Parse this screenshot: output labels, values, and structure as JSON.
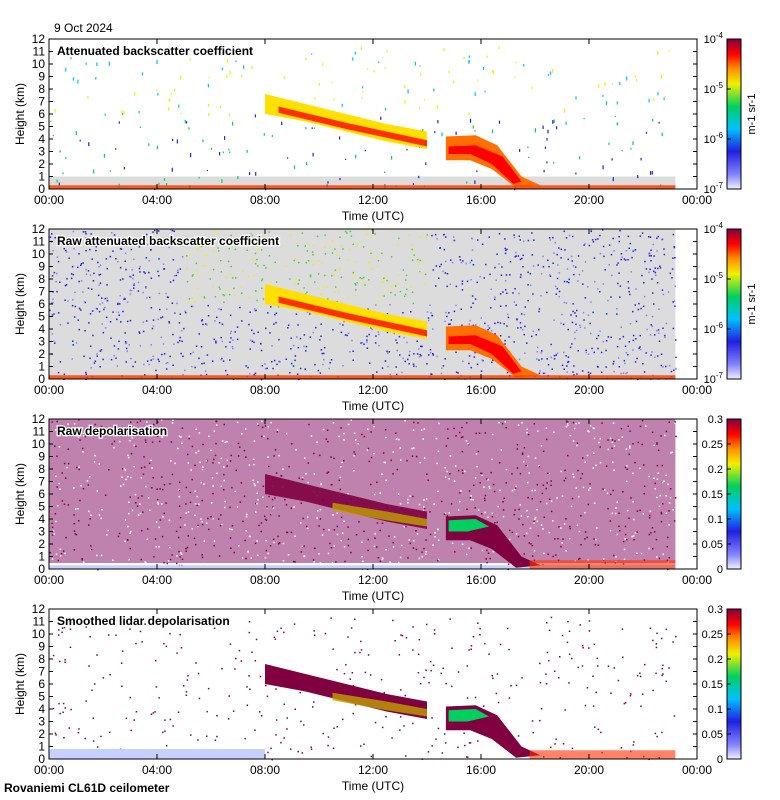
{
  "date_label": "9 Oct 2024",
  "footer_label": "Rovaniemi CL61D ceilometer",
  "colors": {
    "clear_sky": "#dcdcdc",
    "background": "#ffffff",
    "colormap": [
      "#f0f0ff",
      "#8080ff",
      "#2020e0",
      "#00c0ff",
      "#00d060",
      "#f0f000",
      "#ff9000",
      "#ff0000",
      "#800040"
    ]
  },
  "chart_data": [
    {
      "type": "heatmap",
      "title": "Attenuated backscatter coefficient",
      "xlabel": "Time (UTC)",
      "ylabel": "Height (km)",
      "xticks": [
        "00:00",
        "04:00",
        "08:00",
        "12:00",
        "16:00",
        "20:00",
        "00:00"
      ],
      "yticks": [
        "0",
        "1",
        "2",
        "3",
        "4",
        "5",
        "6",
        "7",
        "8",
        "9",
        "10",
        "11",
        "12"
      ],
      "xlim_hours": [
        0,
        24
      ],
      "ylim_km": [
        0,
        12
      ],
      "colorbar": {
        "scale": "log",
        "ticks": [
          "10-7",
          "10-6",
          "10-5",
          "10-4"
        ],
        "label": "m-1 sr-1"
      },
      "features": [
        {
          "name": "mid-level cloud layer",
          "start_h": 8.0,
          "end_h": 14.0,
          "top_km": [
            7.6,
            6.2,
            5.2,
            4.6
          ],
          "base_km": [
            6.0,
            4.8,
            3.8,
            3.2
          ]
        },
        {
          "name": "lower cloud layer",
          "start_h": 14.7,
          "end_h": 17.5,
          "top_km": [
            4.2,
            4.2,
            3.5,
            1.0
          ],
          "base_km": [
            2.3,
            2.3,
            1.6,
            0.1
          ]
        },
        {
          "name": "boundary layer",
          "start_h": 0.0,
          "end_h": 23.2,
          "top_km": 1.0
        }
      ]
    },
    {
      "type": "heatmap",
      "title": "Raw attenuated backscatter coefficient",
      "xlabel": "Time (UTC)",
      "ylabel": "Height (km)",
      "xticks": [
        "00:00",
        "04:00",
        "08:00",
        "12:00",
        "16:00",
        "20:00",
        "00:00"
      ],
      "yticks": [
        "0",
        "1",
        "2",
        "3",
        "4",
        "5",
        "6",
        "7",
        "8",
        "9",
        "10",
        "11",
        "12"
      ],
      "xlim_hours": [
        0,
        24
      ],
      "ylim_km": [
        0,
        12
      ],
      "colorbar": {
        "scale": "log",
        "ticks": [
          "10-7",
          "10-6",
          "10-5",
          "10-4"
        ],
        "label": "m-1 sr-1"
      },
      "features": [
        {
          "name": "mid-level cloud layer",
          "start_h": 8.0,
          "end_h": 14.0
        },
        {
          "name": "lower cloud layer",
          "start_h": 14.7,
          "end_h": 17.5
        }
      ]
    },
    {
      "type": "heatmap",
      "title": "Raw depolarisation",
      "xlabel": "Time (UTC)",
      "ylabel": "Height (km)",
      "xticks": [
        "00:00",
        "04:00",
        "08:00",
        "12:00",
        "16:00",
        "20:00",
        "00:00"
      ],
      "yticks": [
        "0",
        "1",
        "2",
        "3",
        "4",
        "5",
        "6",
        "7",
        "8",
        "9",
        "10",
        "11",
        "12"
      ],
      "xlim_hours": [
        0,
        24
      ],
      "ylim_km": [
        0,
        12
      ],
      "colorbar": {
        "scale": "linear",
        "range": [
          0,
          0.3
        ],
        "ticks": [
          "0",
          "0.05",
          "0.1",
          "0.15",
          "0.2",
          "0.25",
          "0.3"
        ]
      }
    },
    {
      "type": "heatmap",
      "title": "Smoothed lidar depolarisation",
      "xlabel": "Time (UTC)",
      "ylabel": "Height (km)",
      "xticks": [
        "00:00",
        "04:00",
        "08:00",
        "12:00",
        "16:00",
        "20:00",
        "00:00"
      ],
      "yticks": [
        "0",
        "1",
        "2",
        "3",
        "4",
        "5",
        "6",
        "7",
        "8",
        "9",
        "10",
        "11",
        "12"
      ],
      "xlim_hours": [
        0,
        24
      ],
      "ylim_km": [
        0,
        12
      ],
      "colorbar": {
        "scale": "linear",
        "range": [
          0,
          0.3
        ],
        "ticks": [
          "0",
          "0.05",
          "0.1",
          "0.15",
          "0.2",
          "0.25",
          "0.3"
        ]
      }
    }
  ]
}
